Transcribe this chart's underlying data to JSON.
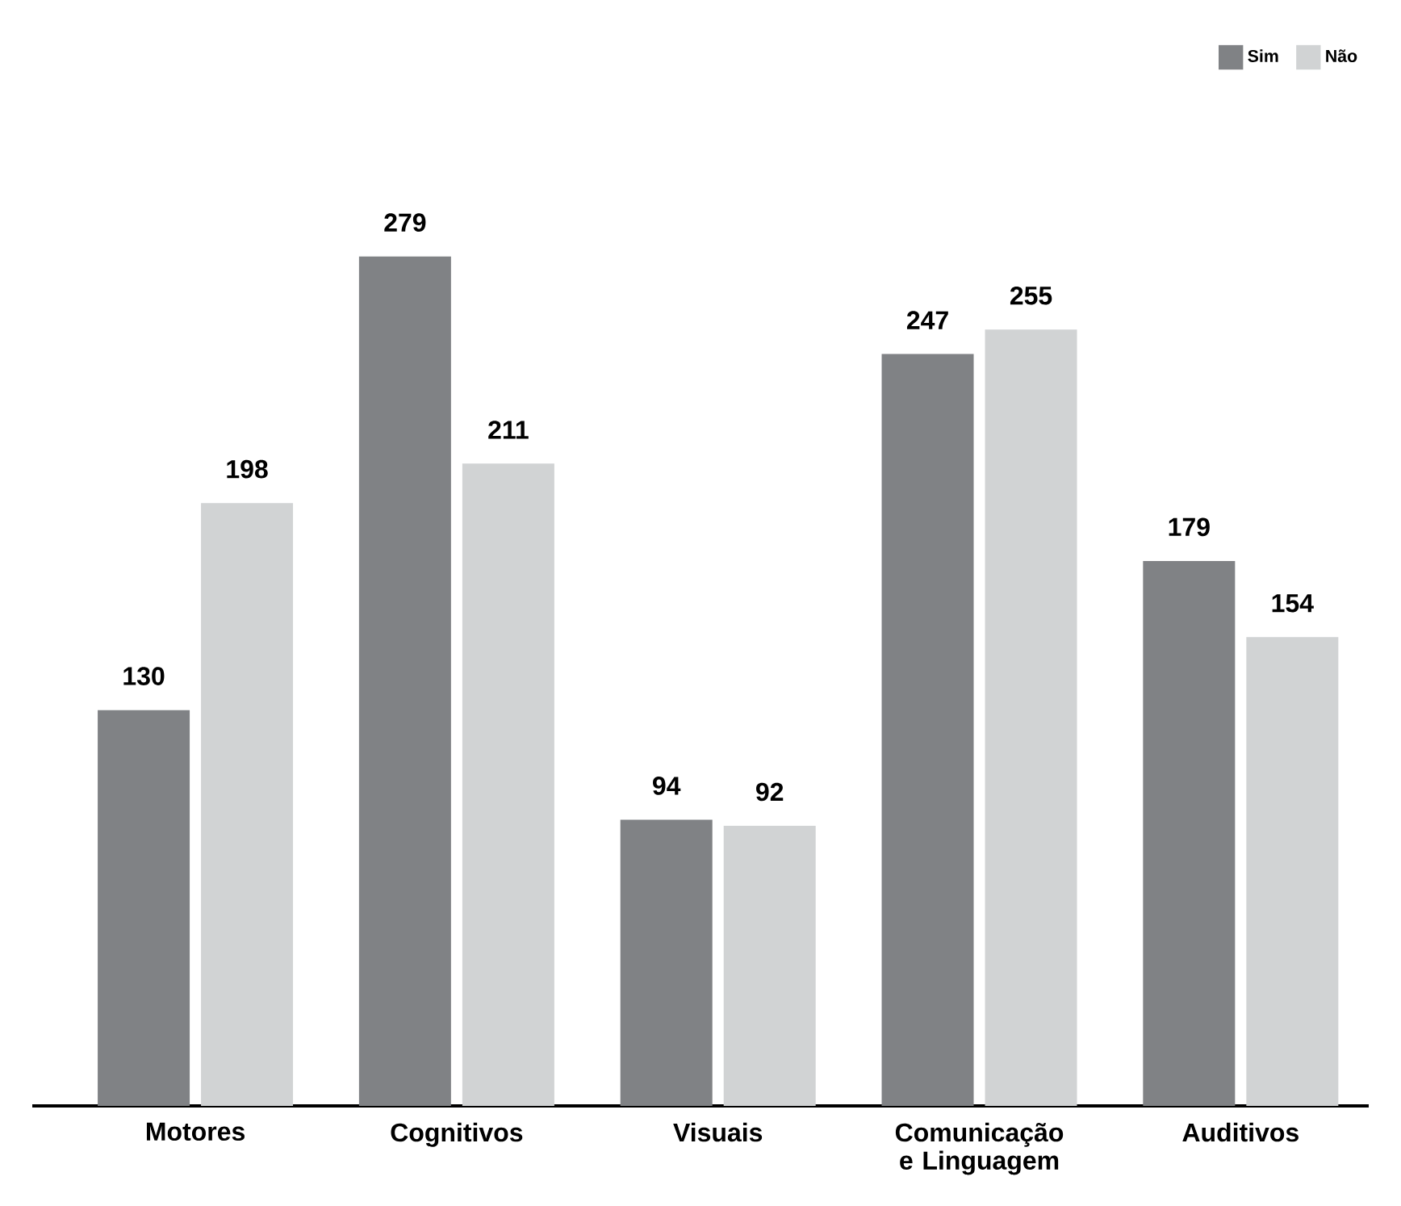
{
  "chart_data": {
    "type": "bar",
    "categories": [
      "Motores",
      "Cognitivos",
      "Visuais",
      "Comunicação e Linguagem",
      "Auditivos"
    ],
    "series": [
      {
        "name": "Sim",
        "color": "#808285",
        "values": [
          130,
          279,
          94,
          247,
          179
        ]
      },
      {
        "name": "Não",
        "color": "#d1d3d4",
        "values": [
          198,
          211,
          92,
          255,
          154
        ]
      }
    ],
    "ylim": [
      0,
      350
    ],
    "data_labels": true,
    "legend": "top right",
    "tick_labels": "x"
  }
}
